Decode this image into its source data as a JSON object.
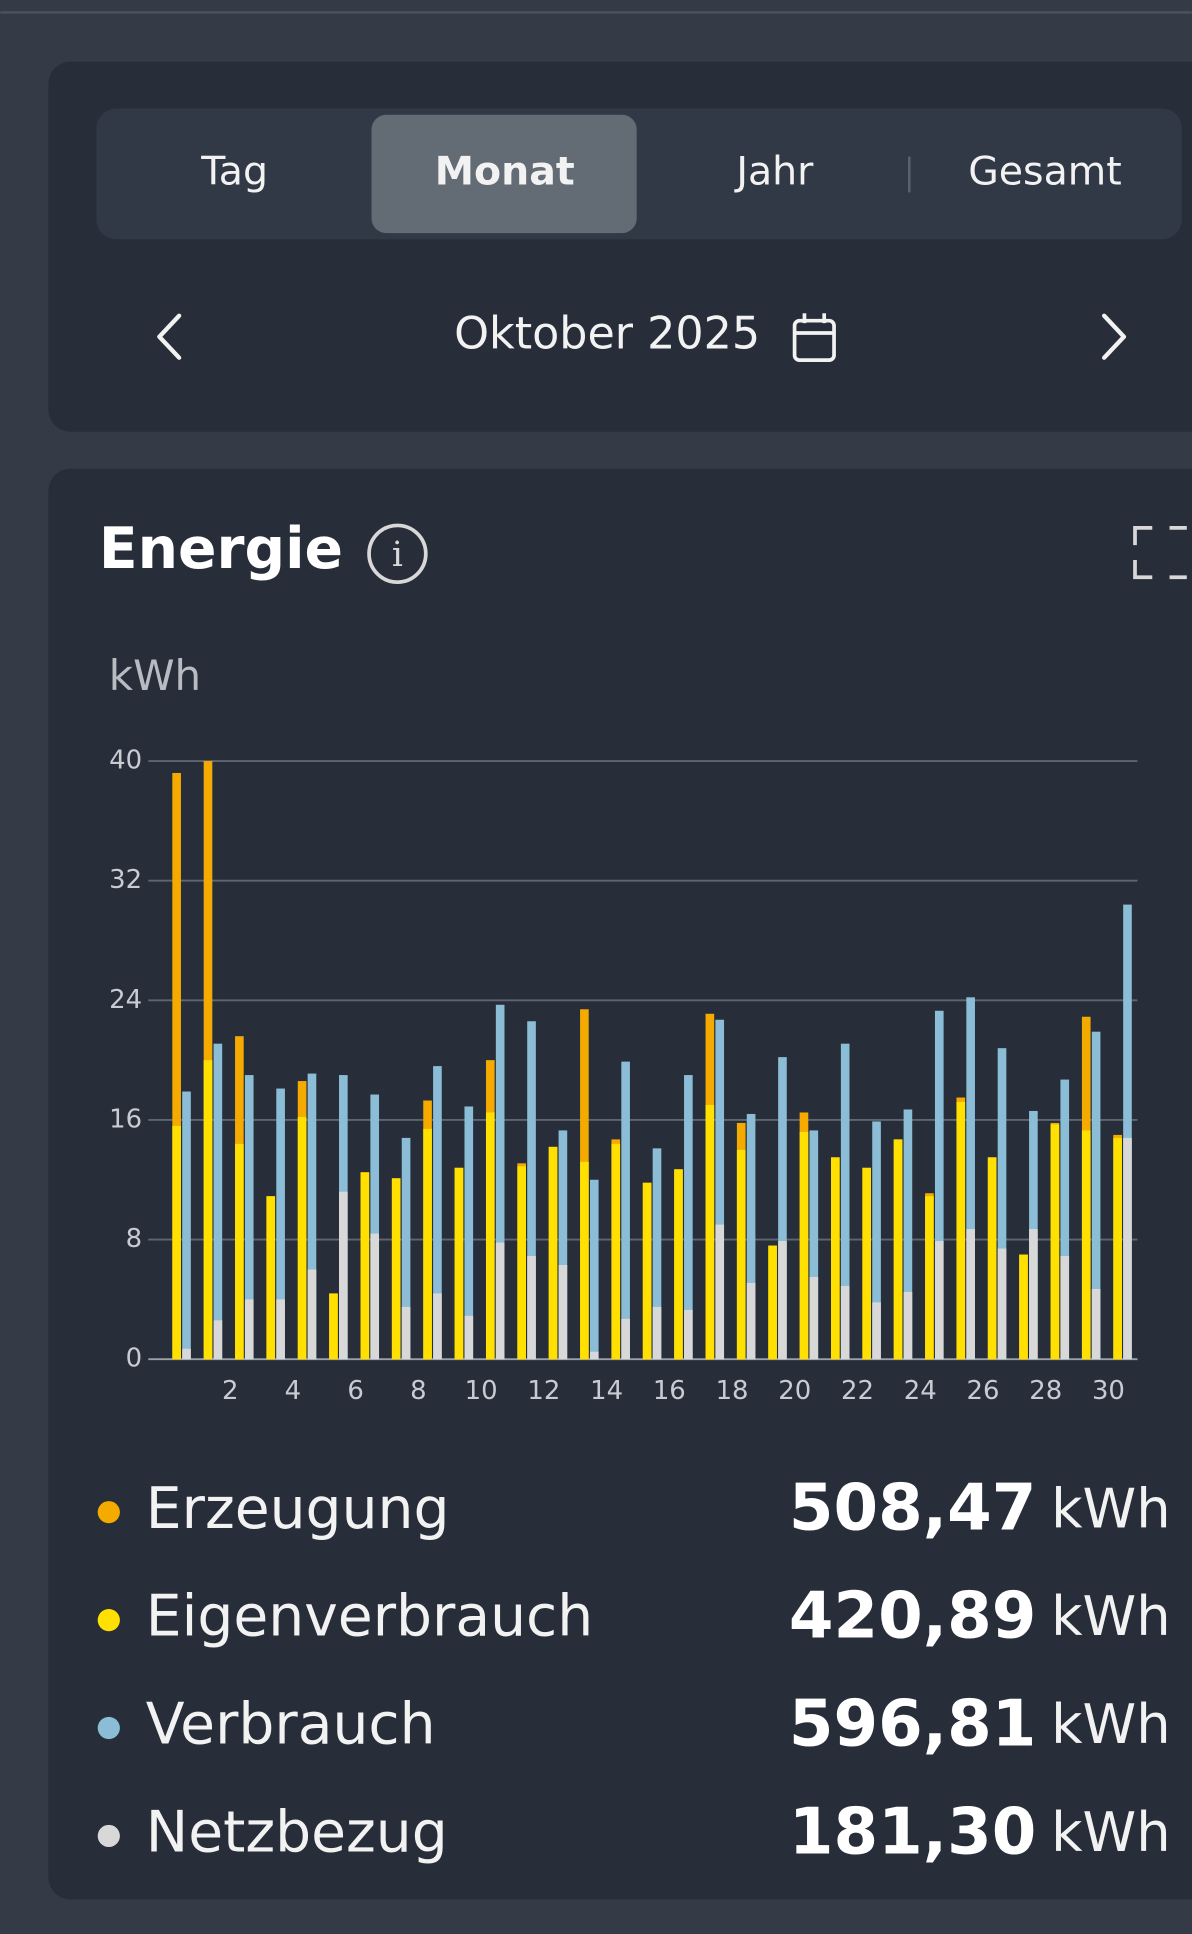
{
  "tabs": [
    "Tag",
    "Monat",
    "Jahr",
    "Gesamt"
  ],
  "period": "Oktober 2025",
  "card_title": "Energie",
  "chart_data": {
    "type": "bar",
    "y_label": "kWh",
    "categories": [
      null,
      2,
      null,
      4,
      null,
      6,
      null,
      8,
      null,
      10,
      null,
      12,
      null,
      14,
      null,
      16,
      null,
      18,
      null,
      20,
      null,
      22,
      null,
      24,
      null,
      26,
      null,
      28,
      null,
      30,
      null
    ],
    "series": [
      {
        "name": "Erzeugung",
        "color": "#f5aa00",
        "values": [
          39.2,
          40.0,
          21.6,
          10.9,
          18.6,
          4.4,
          12.5,
          12.1,
          17.3,
          12.8,
          20.0,
          13.1,
          14.2,
          23.4,
          14.7,
          11.8,
          12.7,
          23.1,
          15.8,
          7.6,
          16.5,
          13.5,
          12.8,
          14.7,
          11.1,
          17.5,
          13.5,
          7.0,
          15.8,
          22.9,
          15.0
        ]
      },
      {
        "name": "Eigenverbrauch",
        "color": "#ffe000",
        "values": [
          15.6,
          20.0,
          14.4,
          10.9,
          16.2,
          4.4,
          12.5,
          12.1,
          15.4,
          12.8,
          16.5,
          12.9,
          14.2,
          13.2,
          14.4,
          11.8,
          12.7,
          17.0,
          14.0,
          7.6,
          15.2,
          13.5,
          12.8,
          14.7,
          10.9,
          17.2,
          13.5,
          7.0,
          15.7,
          15.3,
          14.8
        ]
      },
      {
        "name": "Verbrauch",
        "color": "#8bbdd6",
        "values": [
          17.9,
          21.1,
          19.0,
          18.1,
          19.1,
          19.0,
          17.7,
          14.8,
          19.6,
          16.9,
          23.7,
          22.6,
          15.3,
          12.0,
          19.9,
          14.1,
          19.0,
          22.7,
          16.4,
          20.2,
          15.3,
          21.1,
          15.9,
          16.7,
          23.3,
          24.2,
          20.8,
          16.6,
          18.7,
          21.9,
          30.4
        ]
      },
      {
        "name": "Netzbezug",
        "color": "#d8d8d8",
        "values": [
          0.7,
          2.6,
          4.0,
          4.0,
          6.0,
          11.2,
          8.4,
          3.5,
          4.4,
          2.9,
          7.8,
          6.9,
          6.3,
          0.5,
          2.7,
          3.5,
          3.3,
          9.0,
          5.1,
          7.9,
          5.5,
          4.9,
          3.8,
          4.5,
          7.9,
          8.7,
          7.4,
          8.7,
          6.9,
          4.7,
          14.8
        ]
      }
    ],
    "ylim": [
      0,
      40
    ],
    "yticks": [
      0,
      8,
      16,
      24,
      32,
      40
    ],
    "grid": true
  },
  "totals": [
    {
      "value": "508,47",
      "unit": "kWh"
    },
    {
      "value": "420,89",
      "unit": "kWh"
    },
    {
      "value": "596,81",
      "unit": "kWh"
    },
    {
      "value": "181,30",
      "unit": "kWh"
    }
  ]
}
